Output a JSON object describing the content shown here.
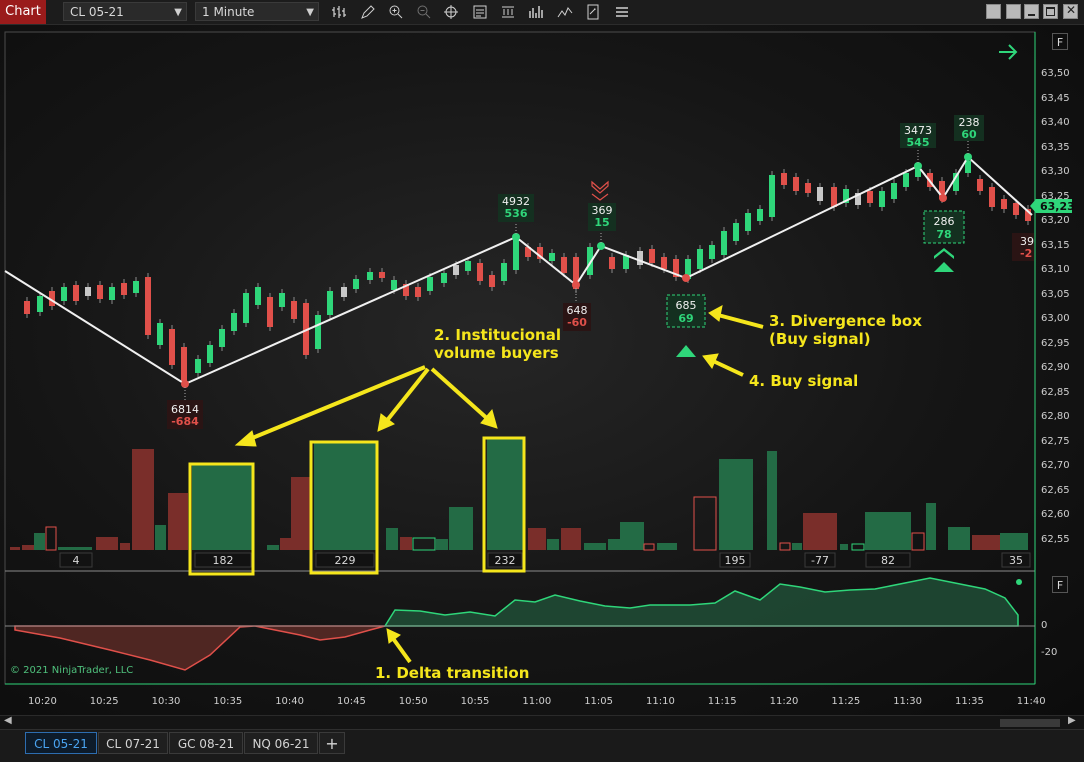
{
  "toolbar": {
    "title": "Chart",
    "instrument": "CL 05-21",
    "interval": "1 Minute",
    "icons": [
      "bars-type-icon",
      "draw-pencil-icon",
      "zoom-in-icon",
      "zoom-out-icon",
      "crosshair-icon",
      "data-box-icon",
      "indicators-icon",
      "strategies-icon",
      "drawing-tools-icon",
      "properties-icon",
      "templates-icon"
    ]
  },
  "chart": {
    "price_axis": [
      "63,50",
      "63,45",
      "63,40",
      "63,35",
      "63,30",
      "63,25",
      "63,20",
      "63,15",
      "63,10",
      "63,05",
      "63,00",
      "62,95",
      "62,90",
      "62,85",
      "62,80",
      "62,75",
      "62,70",
      "62,65",
      "62,60",
      "62,55"
    ],
    "last_price": "63,23",
    "time_axis": [
      "10:20",
      "10:25",
      "10:30",
      "10:35",
      "10:40",
      "10:45",
      "10:50",
      "10:55",
      "11:00",
      "11:05",
      "11:10",
      "11:15",
      "11:20",
      "11:25",
      "11:30",
      "11:35",
      "11:40"
    ],
    "delta_axis": [
      "0",
      "-20"
    ],
    "f_label": "F",
    "copyright": "© 2021 NinjaTrader, LLC",
    "accent_green": "#2fd67a",
    "accent_red": "#e0504a",
    "swing_labels": [
      {
        "vol": "6814",
        "delta": "-684",
        "dir": "down"
      },
      {
        "vol": "4932",
        "delta": "536",
        "dir": "up"
      },
      {
        "vol": "648",
        "delta": "-60",
        "dir": "down"
      },
      {
        "vol": "369",
        "delta": "15",
        "dir": "up"
      },
      {
        "vol": "685",
        "delta": "69",
        "dir": "box"
      },
      {
        "vol": "3473",
        "delta": "545",
        "dir": "up"
      },
      {
        "vol": "238",
        "delta": "60",
        "dir": "up"
      },
      {
        "vol": "286",
        "delta": "78",
        "dir": "box"
      },
      {
        "vol": "39",
        "delta": "-2",
        "dir": "down"
      }
    ],
    "volume_labels": [
      "4",
      "182",
      "229",
      "232",
      "195",
      "-77",
      "82",
      "35"
    ]
  },
  "annotations": {
    "inst_buyers_line1": "2. Institucional",
    "inst_buyers_line2": "volume buyers",
    "divergence_line1": "3. Divergence box",
    "divergence_line2": "(Buy signal)",
    "buy_signal": "4. Buy signal",
    "delta_transition": "1. Delta transition"
  },
  "tabs": [
    "CL 05-21",
    "CL 07-21",
    "GC 08-21",
    "NQ 06-21"
  ],
  "add_tab": "+"
}
